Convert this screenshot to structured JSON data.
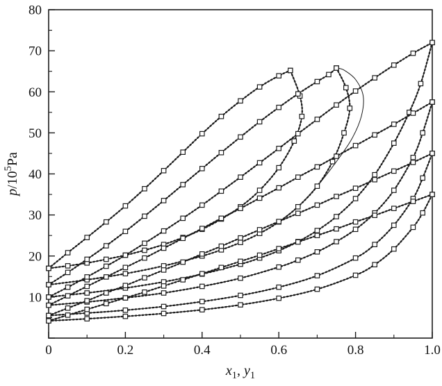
{
  "figure": {
    "background": "#ffffff",
    "line_color": "#1a1a1a"
  },
  "chart_data": {
    "type": "line",
    "title": "",
    "xlabel": "x1, y1",
    "ylabel": "p/10^5 Pa",
    "xlabel_parts": [
      {
        "text": "x",
        "italic": true
      },
      {
        "text": "1",
        "sub": true
      },
      {
        "text": ", "
      },
      {
        "text": "y",
        "italic": true
      },
      {
        "text": "1",
        "sub": true
      }
    ],
    "ylabel_parts": [
      {
        "text": "p",
        "italic": true
      },
      {
        "text": "/10"
      },
      {
        "text": "5",
        "sup": true
      },
      {
        "text": "Pa"
      }
    ],
    "xlim": [
      0,
      1
    ],
    "ylim": [
      0,
      80
    ],
    "xticks": [
      0,
      0.2,
      0.4,
      0.6,
      0.8,
      1
    ],
    "xtick_labels": [
      "0",
      "0.2",
      "0.4",
      "0.6",
      "0.8",
      "1.0"
    ],
    "x_minor_step": 0.1,
    "yticks": [
      0,
      10,
      20,
      30,
      40,
      50,
      60,
      70,
      80
    ],
    "ytick_labels": [
      "",
      "10",
      "20",
      "30",
      "40",
      "50",
      "60",
      "70",
      "80"
    ],
    "y_minor_step": 5,
    "grid": false,
    "legend": null,
    "marker": "open-square",
    "marker_size": 6.4,
    "line_color": "#1a1a1a",
    "series": [
      {
        "name": "isotherm-1-bubble",
        "branch": "bubble",
        "markers": true,
        "style": "solid-dotted",
        "x": [
          0,
          0.05,
          0.1,
          0.15,
          0.2,
          0.25,
          0.3,
          0.35,
          0.4,
          0.45,
          0.5,
          0.55,
          0.6,
          0.63
        ],
        "y": [
          17,
          20.8,
          24.5,
          28.3,
          32.2,
          36.4,
          40.8,
          45.3,
          49.8,
          54,
          57.8,
          61.2,
          63.9,
          65.2
        ]
      },
      {
        "name": "isotherm-1-dew",
        "branch": "dew",
        "markers": true,
        "style": "solid-dotted",
        "x": [
          0,
          0.05,
          0.1,
          0.15,
          0.2,
          0.25,
          0.3,
          0.35,
          0.4,
          0.45,
          0.5,
          0.55,
          0.6,
          0.64,
          0.66,
          0.655,
          0.63
        ],
        "y": [
          17,
          17.6,
          18.3,
          19.2,
          20.2,
          21.4,
          22.8,
          24.5,
          26.5,
          29,
          32,
          36,
          41.5,
          48,
          54,
          59,
          65.2
        ]
      },
      {
        "name": "isotherm-2-bubble",
        "branch": "bubble",
        "markers": true,
        "style": "solid-dotted",
        "x": [
          0,
          0.05,
          0.1,
          0.15,
          0.2,
          0.25,
          0.3,
          0.35,
          0.4,
          0.45,
          0.5,
          0.55,
          0.6,
          0.65,
          0.7,
          0.73,
          0.75
        ],
        "y": [
          13,
          16,
          19.2,
          22.5,
          26,
          29.7,
          33.5,
          37.4,
          41.3,
          45.2,
          49,
          52.7,
          56.2,
          59.5,
          62.5,
          64.2,
          65.8
        ]
      },
      {
        "name": "isotherm-2-dew",
        "branch": "dew",
        "markers": true,
        "style": "solid-dotted",
        "x": [
          0,
          0.1,
          0.2,
          0.3,
          0.4,
          0.45,
          0.5,
          0.55,
          0.6,
          0.65,
          0.7,
          0.74,
          0.77,
          0.785,
          0.775,
          0.75
        ],
        "y": [
          13,
          14.2,
          15.7,
          17.6,
          20,
          21.5,
          23.3,
          25.5,
          28.3,
          32,
          37,
          43,
          50,
          56,
          61,
          65.8
        ]
      },
      {
        "name": "isotherm-2-dew-model-alt",
        "branch": "dew",
        "markers": false,
        "style": "thin",
        "x": [
          0.6,
          0.65,
          0.7,
          0.75,
          0.79,
          0.815,
          0.82,
          0.8,
          0.77,
          0.75
        ],
        "y": [
          28.3,
          32,
          37,
          43,
          48.5,
          54,
          59,
          63,
          65.3,
          65.8
        ]
      },
      {
        "name": "isotherm-3-bubble",
        "branch": "bubble",
        "markers": true,
        "style": "solid-dotted",
        "x": [
          0,
          0.05,
          0.1,
          0.15,
          0.2,
          0.25,
          0.3,
          0.35,
          0.4,
          0.45,
          0.5,
          0.55,
          0.6,
          0.65,
          0.7,
          0.75,
          0.8,
          0.85,
          0.9,
          0.95,
          1
        ],
        "y": [
          10,
          12.4,
          14.9,
          17.5,
          20.2,
          23.1,
          26.1,
          29.2,
          32.4,
          35.8,
          39.2,
          42.7,
          46.2,
          49.8,
          53.3,
          56.8,
          60.2,
          63.4,
          66.5,
          69.4,
          72
        ]
      },
      {
        "name": "isotherm-3-dew",
        "branch": "dew",
        "markers": true,
        "style": "solid-dotted",
        "x": [
          0,
          0.1,
          0.2,
          0.3,
          0.4,
          0.5,
          0.55,
          0.6,
          0.65,
          0.7,
          0.75,
          0.8,
          0.85,
          0.9,
          0.94,
          0.97,
          1
        ],
        "y": [
          10,
          11,
          12.2,
          13.7,
          15.6,
          18,
          19.5,
          21.3,
          23.5,
          26.2,
          29.6,
          34,
          39.8,
          47.5,
          55,
          62,
          72
        ]
      },
      {
        "name": "isotherm-4-bubble",
        "branch": "bubble",
        "markers": true,
        "style": "solid-dotted",
        "x": [
          0,
          0.05,
          0.1,
          0.15,
          0.2,
          0.25,
          0.3,
          0.35,
          0.4,
          0.45,
          0.5,
          0.55,
          0.6,
          0.65,
          0.7,
          0.75,
          0.8,
          0.85,
          0.9,
          0.95,
          1
        ],
        "y": [
          8,
          10.3,
          12.6,
          14.9,
          17.2,
          19.5,
          21.9,
          24.3,
          26.7,
          29.2,
          31.6,
          34.1,
          36.6,
          39.2,
          41.7,
          44.3,
          46.9,
          49.5,
          52.1,
          54.8,
          57.5
        ]
      },
      {
        "name": "isotherm-4-dew",
        "branch": "dew",
        "markers": true,
        "style": "solid-dotted",
        "x": [
          0,
          0.1,
          0.2,
          0.3,
          0.4,
          0.5,
          0.6,
          0.65,
          0.7,
          0.75,
          0.8,
          0.85,
          0.9,
          0.95,
          0.975,
          1
        ],
        "y": [
          8,
          8.8,
          9.8,
          11,
          12.6,
          14.6,
          17.3,
          19,
          21,
          23.5,
          26.5,
          30.5,
          36,
          44,
          50,
          57.5
        ]
      },
      {
        "name": "isotherm-5-bubble",
        "branch": "bubble",
        "markers": true,
        "style": "solid-dotted",
        "x": [
          0,
          0.05,
          0.1,
          0.15,
          0.2,
          0.25,
          0.3,
          0.35,
          0.4,
          0.45,
          0.5,
          0.55,
          0.6,
          0.65,
          0.7,
          0.75,
          0.8,
          0.85,
          0.9,
          0.95,
          1
        ],
        "y": [
          5.5,
          7.3,
          9.1,
          11,
          12.8,
          14.7,
          16.6,
          18.5,
          20.5,
          22.4,
          24.4,
          26.4,
          28.4,
          30.4,
          32.4,
          34.5,
          36.5,
          38.6,
          40.7,
          42.8,
          45
        ]
      },
      {
        "name": "isotherm-5-dew",
        "branch": "dew",
        "markers": true,
        "style": "solid-dotted",
        "x": [
          0,
          0.1,
          0.2,
          0.3,
          0.4,
          0.5,
          0.6,
          0.7,
          0.8,
          0.85,
          0.9,
          0.95,
          0.975,
          1
        ],
        "y": [
          5.5,
          6.1,
          6.8,
          7.7,
          8.9,
          10.4,
          12.4,
          15.2,
          19.5,
          22.8,
          27.5,
          34,
          39,
          45
        ]
      },
      {
        "name": "isotherm-6-bubble",
        "branch": "bubble",
        "markers": true,
        "style": "solid-dotted",
        "x": [
          0,
          0.05,
          0.1,
          0.15,
          0.2,
          0.25,
          0.3,
          0.35,
          0.4,
          0.45,
          0.5,
          0.55,
          0.6,
          0.65,
          0.7,
          0.75,
          0.8,
          0.85,
          0.9,
          0.95,
          1
        ],
        "y": [
          4.2,
          5.6,
          7,
          8.4,
          9.8,
          11.2,
          12.7,
          14.2,
          15.7,
          17.2,
          18.7,
          20.2,
          21.8,
          23.4,
          25,
          26.6,
          28.3,
          29.9,
          31.6,
          33.3,
          35
        ]
      },
      {
        "name": "isotherm-6-dew",
        "branch": "dew",
        "markers": true,
        "style": "solid-dotted",
        "x": [
          0,
          0.1,
          0.2,
          0.3,
          0.4,
          0.5,
          0.6,
          0.7,
          0.8,
          0.85,
          0.9,
          0.95,
          0.975,
          1
        ],
        "y": [
          4.2,
          4.7,
          5.3,
          6,
          6.9,
          8.1,
          9.7,
          11.9,
          15.3,
          17.9,
          21.7,
          27,
          30.5,
          35
        ]
      }
    ]
  }
}
